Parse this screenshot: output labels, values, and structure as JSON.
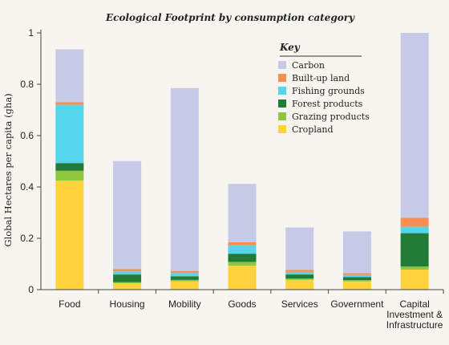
{
  "chart_data": {
    "type": "bar",
    "stacked": true,
    "title": "Ecological Footprint by consumption category",
    "ylabel": "Global Hectares per capita (gha)",
    "xlabel": "",
    "ylim": [
      0,
      1
    ],
    "yticks": [
      "0",
      "0.2",
      "0.4",
      "0.6",
      "0.8",
      "1"
    ],
    "grid": false,
    "legend_title": "Key",
    "legend_position": "top-right",
    "categories": [
      [
        "Food"
      ],
      [
        "Housing"
      ],
      [
        "Mobility"
      ],
      [
        "Goods"
      ],
      [
        "Services"
      ],
      [
        "Government"
      ],
      [
        "Capital",
        "Investment &",
        "Infrastructure"
      ]
    ],
    "series": [
      {
        "name": "Cropland",
        "color": "#fed23c",
        "values": [
          0.425,
          0.025,
          0.033,
          0.093,
          0.038,
          0.032,
          0.078
        ]
      },
      {
        "name": "Grazing products",
        "color": "#8dc63f",
        "values": [
          0.038,
          0.004,
          0.005,
          0.015,
          0.005,
          0.005,
          0.012
        ]
      },
      {
        "name": "Forest products",
        "color": "#217a35",
        "values": [
          0.03,
          0.03,
          0.014,
          0.032,
          0.016,
          0.012,
          0.13
        ]
      },
      {
        "name": "Fishing grounds",
        "color": "#55d5ec",
        "values": [
          0.227,
          0.012,
          0.013,
          0.033,
          0.01,
          0.008,
          0.025
        ]
      },
      {
        "name": "Built-up land",
        "color": "#f78f54",
        "values": [
          0.01,
          0.009,
          0.008,
          0.012,
          0.008,
          0.007,
          0.035
        ]
      },
      {
        "name": "Carbon",
        "color": "#c6cae6",
        "values": [
          0.206,
          0.421,
          0.712,
          0.227,
          0.165,
          0.163,
          0.72
        ]
      }
    ],
    "legend_order": [
      "Carbon",
      "Built-up land",
      "Fishing grounds",
      "Forest products",
      "Grazing products",
      "Cropland"
    ]
  }
}
